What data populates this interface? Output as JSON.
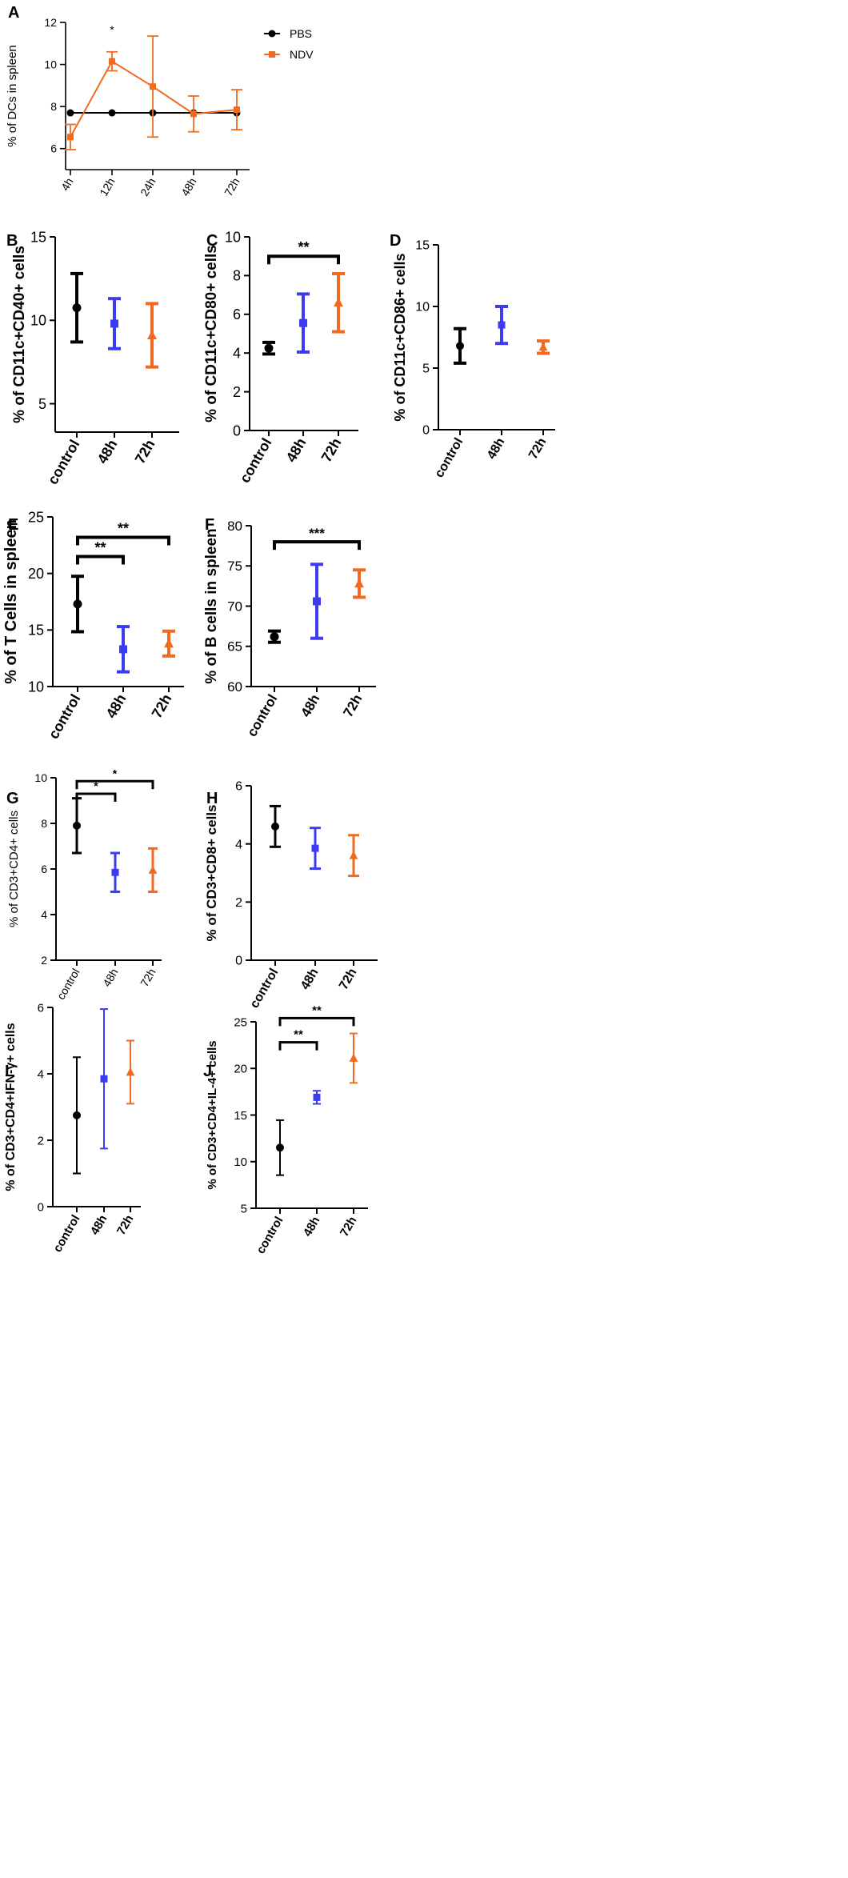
{
  "colors": {
    "control": "#000000",
    "h48": "#3b3bf0",
    "h72": "#f26a1f",
    "PBS": "#000000",
    "NDV": "#f26a1f"
  },
  "chart_data": [
    {
      "panel": "A",
      "type": "line",
      "ylabel": "% of  DCs in spleen",
      "xlabel": "",
      "categories": [
        "4h",
        "12h",
        "24h",
        "48h",
        "72h"
      ],
      "ylim": [
        5,
        12
      ],
      "yticks": [
        6,
        8,
        10,
        12
      ],
      "legend": {
        "position": "top-right",
        "entries": [
          "PBS",
          "NDV"
        ]
      },
      "series": [
        {
          "name": "PBS",
          "marker": "circle",
          "values": [
            7.7,
            7.7,
            7.7,
            7.7,
            7.7
          ],
          "errors": [
            0,
            0,
            0,
            0,
            0
          ]
        },
        {
          "name": "NDV",
          "marker": "square",
          "values": [
            6.55,
            10.15,
            8.95,
            7.65,
            7.85
          ],
          "errors": [
            0.6,
            0.45,
            2.4,
            0.85,
            0.95
          ]
        }
      ],
      "annotations": [
        {
          "text": "*",
          "category": "12h"
        }
      ]
    },
    {
      "panel": "B",
      "type": "scatter",
      "ylabel": "% of CD11c+CD40+ cells",
      "categories": [
        "control",
        "48h",
        "72h"
      ],
      "ylim": [
        3.3,
        15
      ],
      "yticks": [
        5,
        10,
        15
      ],
      "values": [
        10.75,
        9.8,
        9.1
      ],
      "errors": [
        2.05,
        1.5,
        1.9
      ],
      "markers": [
        "circle",
        "square",
        "triangle"
      ],
      "significance": []
    },
    {
      "panel": "C",
      "type": "scatter",
      "ylabel": "% of CD11c+CD80+ cells",
      "categories": [
        "control",
        "48h",
        "72h"
      ],
      "ylim": [
        0,
        10
      ],
      "yticks": [
        0,
        2,
        4,
        6,
        8,
        10
      ],
      "values": [
        4.25,
        5.55,
        6.6
      ],
      "errors": [
        0.3,
        1.5,
        1.5
      ],
      "markers": [
        "circle",
        "square",
        "triangle"
      ],
      "significance": [
        {
          "from": 0,
          "to": 2,
          "text": "**",
          "y": 9.0
        }
      ]
    },
    {
      "panel": "D",
      "type": "scatter",
      "ylabel": "% of CD11c+CD86+ cells",
      "categories": [
        "control",
        "48h",
        "72h"
      ],
      "ylim": [
        0,
        15
      ],
      "yticks": [
        0,
        5,
        10,
        15
      ],
      "values": [
        6.8,
        8.5,
        6.7
      ],
      "errors": [
        1.4,
        1.5,
        0.5
      ],
      "markers": [
        "circle",
        "square",
        "triangle"
      ],
      "significance": []
    },
    {
      "panel": "E",
      "type": "scatter",
      "ylabel": "% of  T Cells in spleen",
      "categories": [
        "control",
        "48h",
        "72h"
      ],
      "ylim": [
        10,
        25
      ],
      "yticks": [
        10,
        15,
        20,
        25
      ],
      "values": [
        17.3,
        13.3,
        13.8
      ],
      "errors": [
        2.45,
        2.0,
        1.1
      ],
      "markers": [
        "circle",
        "square",
        "triangle"
      ],
      "significance": [
        {
          "from": 0,
          "to": 1,
          "text": "**",
          "y": 21.5
        },
        {
          "from": 0,
          "to": 2,
          "text": "**",
          "y": 23.2
        }
      ]
    },
    {
      "panel": "F",
      "type": "scatter",
      "ylabel": "% of  B cells in spleen",
      "categories": [
        "control",
        "48h",
        "72h"
      ],
      "ylim": [
        60,
        80
      ],
      "yticks": [
        60,
        65,
        70,
        75,
        80
      ],
      "values": [
        66.2,
        70.6,
        72.8
      ],
      "errors": [
        0.7,
        4.6,
        1.7
      ],
      "markers": [
        "circle",
        "square",
        "triangle"
      ],
      "significance": [
        {
          "from": 0,
          "to": 2,
          "text": "***",
          "y": 78.0
        }
      ]
    },
    {
      "panel": "G",
      "type": "scatter",
      "ylabel": "% of CD3+CD4+ cells",
      "categories": [
        "control",
        "48h",
        "72h"
      ],
      "ylim": [
        2,
        10
      ],
      "yticks": [
        2,
        4,
        6,
        8,
        10
      ],
      "values": [
        7.9,
        5.85,
        5.95
      ],
      "errors": [
        1.2,
        0.85,
        0.95
      ],
      "markers": [
        "circle",
        "square",
        "triangle"
      ],
      "significance": [
        {
          "from": 0,
          "to": 1,
          "text": "*",
          "y": 9.3
        },
        {
          "from": 0,
          "to": 2,
          "text": "*",
          "y": 9.85
        }
      ]
    },
    {
      "panel": "H",
      "type": "scatter",
      "ylabel": "% of CD3+CD8+ cells",
      "categories": [
        "control",
        "48h",
        "72h"
      ],
      "ylim": [
        0,
        6
      ],
      "yticks": [
        0,
        2,
        4,
        6
      ],
      "values": [
        4.6,
        3.85,
        3.6
      ],
      "errors": [
        0.7,
        0.7,
        0.7
      ],
      "markers": [
        "circle",
        "square",
        "triangle"
      ],
      "significance": []
    },
    {
      "panel": "I",
      "type": "scatter",
      "ylabel": "% of CD3+CD4+IFN-γ+ cells",
      "categories": [
        "control",
        "48h",
        "72h"
      ],
      "ylim": [
        0,
        6
      ],
      "yticks": [
        0,
        2,
        4,
        6
      ],
      "values": [
        2.75,
        3.85,
        4.05
      ],
      "errors": [
        1.75,
        2.1,
        0.95
      ],
      "markers": [
        "circle",
        "square",
        "triangle"
      ],
      "significance": []
    },
    {
      "panel": "J",
      "type": "scatter",
      "ylabel": "% of CD3+CD4+IL-4+ cells",
      "categories": [
        "control",
        "48h",
        "72h"
      ],
      "ylim": [
        5,
        25
      ],
      "yticks": [
        5,
        10,
        15,
        20,
        25
      ],
      "values": [
        11.5,
        16.9,
        21.1
      ],
      "errors": [
        2.95,
        0.7,
        2.65
      ],
      "markers": [
        "circle",
        "square",
        "triangle"
      ],
      "significance": [
        {
          "from": 0,
          "to": 1,
          "text": "**",
          "y": 22.8
        },
        {
          "from": 0,
          "to": 2,
          "text": "**",
          "y": 25.4
        }
      ]
    }
  ]
}
